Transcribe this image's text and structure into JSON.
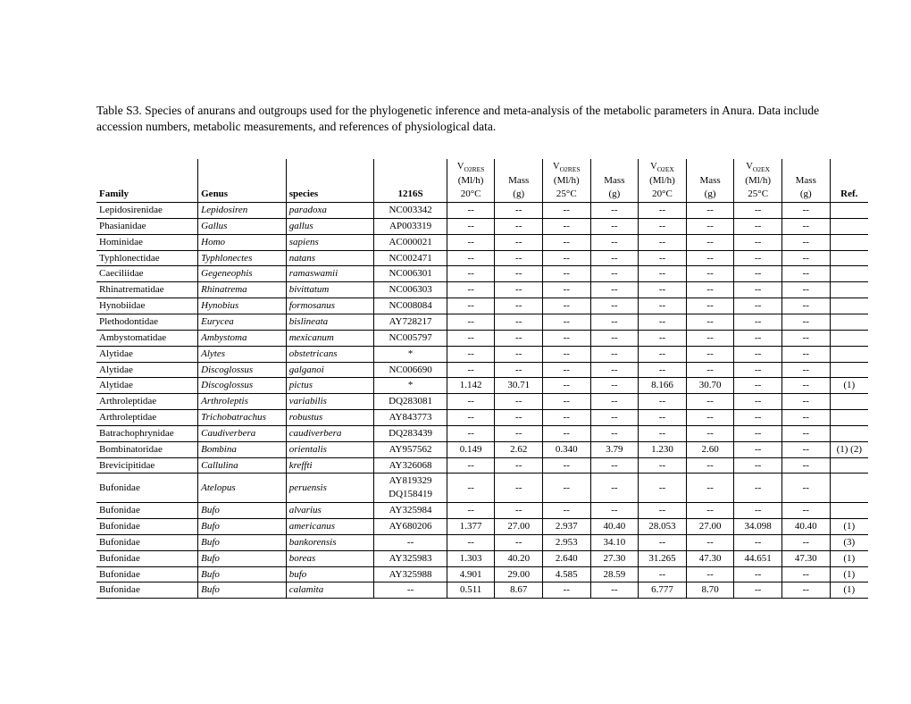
{
  "caption": "Table S3. Species of anurans and outgroups used for the phylogenetic inference and meta-analysis of the metabolic parameters in Anura. Data include accession numbers, metabolic measurements, and references of physiological data.",
  "headers": {
    "family": "Family",
    "genus": "Genus",
    "species": "species",
    "accession": "1216S",
    "vo2res": "V",
    "vo2res_sub": "O2RES",
    "vo2ex": "V",
    "vo2ex_sub": "O2EX",
    "unit": "(Ml/h)",
    "temp20": "20°C",
    "temp25": "25°C",
    "mass": "Mass",
    "mass_unit": "(g)",
    "ref": "Ref."
  },
  "rows": [
    {
      "family": "Lepidosirenidae",
      "genus": "Lepidosiren",
      "species": "paradoxa",
      "acc": "NC003342",
      "v1": "--",
      "m1": "--",
      "v2": "--",
      "m2": "--",
      "v3": "--",
      "m3": "--",
      "v4": "--",
      "m4": "--",
      "ref": ""
    },
    {
      "family": "Phasianidae",
      "genus": "Gallus",
      "species": "gallus",
      "acc": "AP003319",
      "v1": "--",
      "m1": "--",
      "v2": "--",
      "m2": "--",
      "v3": "--",
      "m3": "--",
      "v4": "--",
      "m4": "--",
      "ref": ""
    },
    {
      "family": "Hominidae",
      "genus": "Homo",
      "species": "sapiens",
      "acc": "AC000021",
      "v1": "--",
      "m1": "--",
      "v2": "--",
      "m2": "--",
      "v3": "--",
      "m3": "--",
      "v4": "--",
      "m4": "--",
      "ref": ""
    },
    {
      "family": "Typhlonectidae",
      "genus": "Typhlonectes",
      "species": "natans",
      "acc": "NC002471",
      "v1": "--",
      "m1": "--",
      "v2": "--",
      "m2": "--",
      "v3": "--",
      "m3": "--",
      "v4": "--",
      "m4": "--",
      "ref": ""
    },
    {
      "family": "Caeciliidae",
      "genus": "Gegeneophis",
      "species": "ramaswamii",
      "acc": "NC006301",
      "v1": "--",
      "m1": "--",
      "v2": "--",
      "m2": "--",
      "v3": "--",
      "m3": "--",
      "v4": "--",
      "m4": "--",
      "ref": ""
    },
    {
      "family": "Rhinatrematidae",
      "genus": "Rhinatrema",
      "species": "bivittatum",
      "acc": "NC006303",
      "v1": "--",
      "m1": "--",
      "v2": "--",
      "m2": "--",
      "v3": "--",
      "m3": "--",
      "v4": "--",
      "m4": "--",
      "ref": ""
    },
    {
      "family": "Hynobiidae",
      "genus": "Hynobius",
      "species": "formosanus",
      "acc": "NC008084",
      "v1": "--",
      "m1": "--",
      "v2": "--",
      "m2": "--",
      "v3": "--",
      "m3": "--",
      "v4": "--",
      "m4": "--",
      "ref": ""
    },
    {
      "family": "Plethodontidae",
      "genus": "Eurycea",
      "species": "bislineata",
      "acc": "AY728217",
      "v1": "--",
      "m1": "--",
      "v2": "--",
      "m2": "--",
      "v3": "--",
      "m3": "--",
      "v4": "--",
      "m4": "--",
      "ref": ""
    },
    {
      "family": "Ambystomatidae",
      "genus": "Ambystoma",
      "species": "mexicanum",
      "acc": "NC005797",
      "v1": "--",
      "m1": "--",
      "v2": "--",
      "m2": "--",
      "v3": "--",
      "m3": "--",
      "v4": "--",
      "m4": "--",
      "ref": ""
    },
    {
      "family": "Alytidae",
      "genus": "Alytes",
      "species": "obstetricans",
      "acc": "*",
      "v1": "--",
      "m1": "--",
      "v2": "--",
      "m2": "--",
      "v3": "--",
      "m3": "--",
      "v4": "--",
      "m4": "--",
      "ref": ""
    },
    {
      "family": "Alytidae",
      "genus": "Discoglossus",
      "species": "galganoi",
      "acc": "NC006690",
      "v1": "--",
      "m1": "--",
      "v2": "--",
      "m2": "--",
      "v3": "--",
      "m3": "--",
      "v4": "--",
      "m4": "--",
      "ref": ""
    },
    {
      "family": "Alytidae",
      "genus": "Discoglossus",
      "species": "pictus",
      "acc": "*",
      "v1": "1.142",
      "m1": "30.71",
      "v2": "--",
      "m2": "--",
      "v3": "8.166",
      "m3": "30.70",
      "v4": "--",
      "m4": "--",
      "ref": "(1)"
    },
    {
      "family": "Arthroleptidae",
      "genus": "Arthroleptis",
      "species": "variabilis",
      "acc": "DQ283081",
      "v1": "--",
      "m1": "--",
      "v2": "--",
      "m2": "--",
      "v3": "--",
      "m3": "--",
      "v4": "--",
      "m4": "--",
      "ref": ""
    },
    {
      "family": "Arthroleptidae",
      "genus": "Trichobatrachus",
      "species": "robustus",
      "acc": "AY843773",
      "v1": "--",
      "m1": "--",
      "v2": "--",
      "m2": "--",
      "v3": "--",
      "m3": "--",
      "v4": "--",
      "m4": "--",
      "ref": ""
    },
    {
      "family": "Batrachophrynidae",
      "genus": "Caudiverbera",
      "species": "caudiverbera",
      "acc": "DQ283439",
      "v1": "--",
      "m1": "--",
      "v2": "--",
      "m2": "--",
      "v3": "--",
      "m3": "--",
      "v4": "--",
      "m4": "--",
      "ref": ""
    },
    {
      "family": "Bombinatoridae",
      "genus": "Bombina",
      "species": "orientalis",
      "acc": "AY957562",
      "v1": "0.149",
      "m1": "2.62",
      "v2": "0.340",
      "m2": "3.79",
      "v3": "1.230",
      "m3": "2.60",
      "v4": "--",
      "m4": "--",
      "ref": "(1) (2)"
    },
    {
      "family": "Brevicipitidae",
      "genus": "Callulina",
      "species": "kreffti",
      "acc": "AY326068",
      "v1": "--",
      "m1": "--",
      "v2": "--",
      "m2": "--",
      "v3": "--",
      "m3": "--",
      "v4": "--",
      "m4": "--",
      "ref": ""
    },
    {
      "family": "Bufonidae",
      "genus": "Atelopus",
      "species": "peruensis",
      "acc": "AY819329 DQ158419",
      "v1": "--",
      "m1": "--",
      "v2": "--",
      "m2": "--",
      "v3": "--",
      "m3": "--",
      "v4": "--",
      "m4": "--",
      "ref": ""
    },
    {
      "family": "Bufonidae",
      "genus": "Bufo",
      "species": "alvarius",
      "acc": "AY325984",
      "v1": "--",
      "m1": "--",
      "v2": "--",
      "m2": "--",
      "v3": "--",
      "m3": "--",
      "v4": "--",
      "m4": "--",
      "ref": ""
    },
    {
      "family": "Bufonidae",
      "genus": "Bufo",
      "species": "americanus",
      "acc": "AY680206",
      "v1": "1.377",
      "m1": "27.00",
      "v2": "2.937",
      "m2": "40.40",
      "v3": "28.053",
      "m3": "27.00",
      "v4": "34.098",
      "m4": "40.40",
      "ref": "(1)"
    },
    {
      "family": "Bufonidae",
      "genus": "Bufo",
      "species": "bankorensis",
      "acc": "--",
      "v1": "--",
      "m1": "--",
      "v2": "2.953",
      "m2": "34.10",
      "v3": "--",
      "m3": "--",
      "v4": "--",
      "m4": "--",
      "ref": "(3)"
    },
    {
      "family": "Bufonidae",
      "genus": "Bufo",
      "species": "boreas",
      "acc": "AY325983",
      "v1": "1.303",
      "m1": "40.20",
      "v2": "2.640",
      "m2": "27.30",
      "v3": "31.265",
      "m3": "47.30",
      "v4": "44.651",
      "m4": "47.30",
      "ref": "(1)"
    },
    {
      "family": "Bufonidae",
      "genus": "Bufo",
      "species": "bufo",
      "acc": "AY325988",
      "v1": "4.901",
      "m1": "29.00",
      "v2": "4.585",
      "m2": "28.59",
      "v3": "--",
      "m3": "--",
      "v4": "--",
      "m4": "--",
      "ref": "(1)"
    },
    {
      "family": "Bufonidae",
      "genus": "Bufo",
      "species": "calamita",
      "acc": "--",
      "v1": "0.511",
      "m1": "8.67",
      "v2": "--",
      "m2": "--",
      "v3": "6.777",
      "m3": "8.70",
      "v4": "--",
      "m4": "--",
      "ref": "(1)"
    }
  ],
  "style": {
    "background": "#ffffff",
    "text_color": "#000000",
    "border_color": "#000000",
    "font_family": "Times New Roman",
    "caption_fontsize": 13.5,
    "cell_fontsize": 11
  }
}
